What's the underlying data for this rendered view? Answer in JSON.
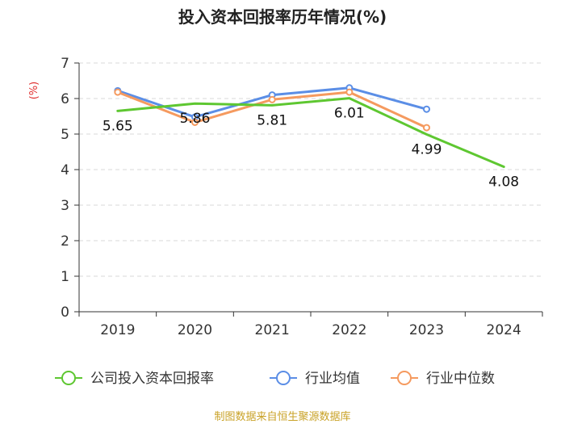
{
  "chart_data": {
    "type": "line",
    "title": "投入资本回报率历年情况(%)",
    "ylabel": "(%)",
    "xlabel": "",
    "categories": [
      "2019",
      "2020",
      "2021",
      "2022",
      "2023",
      "2024"
    ],
    "ylim": [
      0,
      7
    ],
    "yticks": [
      0,
      1,
      2,
      3,
      4,
      5,
      6,
      7
    ],
    "grid": true,
    "legend_position": "bottom",
    "series": [
      {
        "name": "公司投入资本回报率",
        "color": "#5ec731",
        "values": [
          5.65,
          5.86,
          5.81,
          6.01,
          4.99,
          4.08
        ],
        "labels": [
          "5.65",
          "5.86",
          "5.81",
          "6.01",
          "4.99",
          "4.08"
        ],
        "markers": false
      },
      {
        "name": "行业均值",
        "color": "#5b8ee6",
        "values": [
          6.22,
          5.48,
          6.1,
          6.3,
          5.7,
          null
        ],
        "markers": true
      },
      {
        "name": "行业中位数",
        "color": "#f59a5f",
        "values": [
          6.18,
          5.33,
          5.97,
          6.18,
          5.18,
          null
        ],
        "markers": true
      }
    ]
  },
  "source_text": "制图数据来自恒生聚源数据库"
}
